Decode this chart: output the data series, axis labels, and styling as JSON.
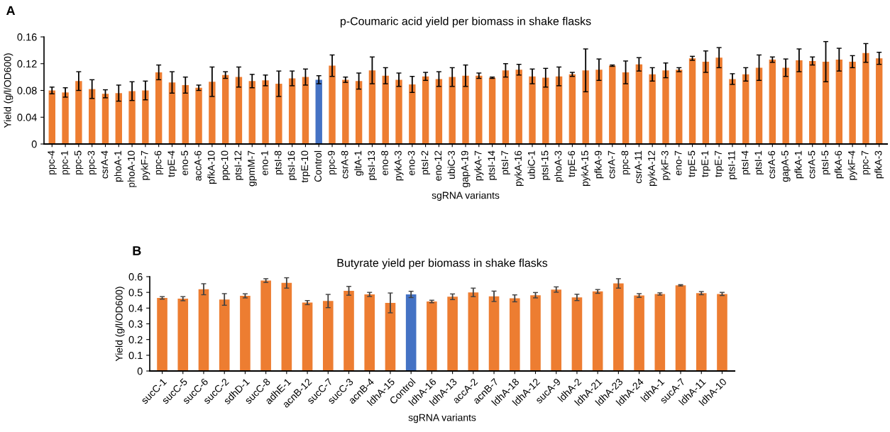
{
  "chart_data": [
    {
      "type": "bar",
      "title": "p-Coumaric acid yield per biomass in shake flasks",
      "xlabel": "sgRNA variants",
      "ylabel": "Yield (g/l/OD600)",
      "annotations": [
        "A"
      ],
      "categories": [
        "ppc-4",
        "ppc-1",
        "ppc-5",
        "ppc-3",
        "csrA-4",
        "phoA-1",
        "phoA-10",
        "pykF-7",
        "ppc-6",
        "trpE-4",
        "eno-5",
        "accA-6",
        "pfkA-10",
        "ppc-10",
        "ptsI-12",
        "gpmM-7",
        "eno-1",
        "ptsI-8",
        "ptsI-16",
        "trpE-10",
        "Control",
        "ppc-9",
        "csrA-8",
        "gltA-1",
        "ptsI-13",
        "eno-8",
        "pykA-3",
        "eno-3",
        "ptsI-2",
        "eno-12",
        "ubiC-3",
        "gapA-19",
        "pykA-7",
        "ptsI-14",
        "ptsI-7",
        "pykA-16",
        "ubiC-1",
        "ptsI-15",
        "phoA-3",
        "trpE-6",
        "pykA-15",
        "pfkA-9",
        "csrA-7",
        "ppc-8",
        "csrA-11",
        "pykA-12",
        "pykF-3",
        "eno-7",
        "trpE-5",
        "trpE-1",
        "trpE-7",
        "ptsI-11",
        "ptsI-4",
        "ptsI-1",
        "csrA-6",
        "gapA-5",
        "pfkA-1",
        "csrA-5",
        "ptsI-5",
        "pfkA-6",
        "pykF-4",
        "ppc-7",
        "pfkA-3"
      ],
      "values": [
        0.08,
        0.077,
        0.094,
        0.082,
        0.075,
        0.076,
        0.079,
        0.08,
        0.107,
        0.092,
        0.088,
        0.084,
        0.093,
        0.103,
        0.1,
        0.094,
        0.095,
        0.09,
        0.098,
        0.1,
        0.096,
        0.117,
        0.096,
        0.094,
        0.11,
        0.102,
        0.096,
        0.089,
        0.101,
        0.097,
        0.1,
        0.102,
        0.102,
        0.099,
        0.11,
        0.111,
        0.101,
        0.099,
        0.101,
        0.104,
        0.11,
        0.111,
        0.117,
        0.107,
        0.119,
        0.104,
        0.11,
        0.111,
        0.128,
        0.123,
        0.129,
        0.097,
        0.104,
        0.114,
        0.126,
        0.114,
        0.125,
        0.124,
        0.123,
        0.126,
        0.123,
        0.136,
        0.128
      ],
      "errors": [
        0.005,
        0.007,
        0.014,
        0.014,
        0.006,
        0.012,
        0.014,
        0.014,
        0.011,
        0.016,
        0.012,
        0.004,
        0.022,
        0.005,
        0.015,
        0.01,
        0.008,
        0.019,
        0.011,
        0.012,
        0.006,
        0.016,
        0.004,
        0.012,
        0.02,
        0.012,
        0.01,
        0.012,
        0.006,
        0.011,
        0.014,
        0.016,
        0.004,
        0.001,
        0.01,
        0.008,
        0.011,
        0.014,
        0.014,
        0.003,
        0.032,
        0.016,
        0.001,
        0.017,
        0.01,
        0.01,
        0.011,
        0.003,
        0.003,
        0.016,
        0.015,
        0.008,
        0.01,
        0.019,
        0.004,
        0.013,
        0.017,
        0.006,
        0.03,
        0.017,
        0.009,
        0.014,
        0.009
      ],
      "colors": [
        "#ed7d31",
        "#ed7d31",
        "#ed7d31",
        "#ed7d31",
        "#ed7d31",
        "#ed7d31",
        "#ed7d31",
        "#ed7d31",
        "#ed7d31",
        "#ed7d31",
        "#ed7d31",
        "#ed7d31",
        "#ed7d31",
        "#ed7d31",
        "#ed7d31",
        "#ed7d31",
        "#ed7d31",
        "#ed7d31",
        "#ed7d31",
        "#ed7d31",
        "#4472c4",
        "#ed7d31",
        "#ed7d31",
        "#ed7d31",
        "#ed7d31",
        "#ed7d31",
        "#ed7d31",
        "#ed7d31",
        "#ed7d31",
        "#ed7d31",
        "#ed7d31",
        "#ed7d31",
        "#ed7d31",
        "#ed7d31",
        "#ed7d31",
        "#ed7d31",
        "#ed7d31",
        "#ed7d31",
        "#ed7d31",
        "#ed7d31",
        "#ed7d31",
        "#ed7d31",
        "#ed7d31",
        "#ed7d31",
        "#ed7d31",
        "#ed7d31",
        "#ed7d31",
        "#ed7d31",
        "#ed7d31",
        "#ed7d31",
        "#ed7d31",
        "#ed7d31",
        "#ed7d31",
        "#ed7d31",
        "#ed7d31",
        "#ed7d31",
        "#ed7d31",
        "#ed7d31",
        "#ed7d31",
        "#ed7d31",
        "#ed7d31",
        "#ed7d31",
        "#ed7d31"
      ],
      "ylim": [
        0,
        0.16
      ],
      "yticks": [
        0,
        0.04,
        0.08,
        0.12,
        0.16
      ],
      "grid": false
    },
    {
      "type": "bar",
      "title": "Butyrate yield per biomass in shake flasks",
      "xlabel": "sgRNA variants",
      "ylabel": "Yield (g/l/OD600)",
      "annotations": [
        "B"
      ],
      "categories": [
        "sucC-1",
        "sucC-5",
        "sucC-6",
        "sucC-2",
        "sdhD-1",
        "sucC-8",
        "adhE-1",
        "acnB-12",
        "sucC-7",
        "sucC-3",
        "acnB-4",
        "ldhA-15",
        "Control",
        "ldhA-16",
        "ldhA-13",
        "accA-2",
        "acnB-7",
        "ldhA-18",
        "ldhA-12",
        "sucA-9",
        "ldhA-2",
        "ldhA-21",
        "ldhA-23",
        "ldhA-24",
        "ldhA-1",
        "sucA-7",
        "ldhA-11",
        "ldhA-10"
      ],
      "values": [
        0.465,
        0.46,
        0.52,
        0.455,
        0.478,
        0.575,
        0.56,
        0.435,
        0.445,
        0.51,
        0.487,
        0.433,
        0.487,
        0.442,
        0.472,
        0.5,
        0.475,
        0.462,
        0.482,
        0.518,
        0.468,
        0.506,
        0.557,
        0.48,
        0.49,
        0.545,
        0.495,
        0.49
      ],
      "errors": [
        0.008,
        0.013,
        0.035,
        0.037,
        0.013,
        0.012,
        0.033,
        0.013,
        0.042,
        0.028,
        0.013,
        0.063,
        0.02,
        0.008,
        0.018,
        0.027,
        0.033,
        0.022,
        0.017,
        0.017,
        0.02,
        0.012,
        0.03,
        0.012,
        0.007,
        0.004,
        0.01,
        0.01
      ],
      "colors": [
        "#ed7d31",
        "#ed7d31",
        "#ed7d31",
        "#ed7d31",
        "#ed7d31",
        "#ed7d31",
        "#ed7d31",
        "#ed7d31",
        "#ed7d31",
        "#ed7d31",
        "#ed7d31",
        "#ed7d31",
        "#4472c4",
        "#ed7d31",
        "#ed7d31",
        "#ed7d31",
        "#ed7d31",
        "#ed7d31",
        "#ed7d31",
        "#ed7d31",
        "#ed7d31",
        "#ed7d31",
        "#ed7d31",
        "#ed7d31",
        "#ed7d31",
        "#ed7d31",
        "#ed7d31",
        "#ed7d31"
      ],
      "ylim": [
        0,
        0.6
      ],
      "yticks": [
        0,
        0.1,
        0.2,
        0.3,
        0.4,
        0.5,
        0.6
      ],
      "grid": false
    }
  ]
}
